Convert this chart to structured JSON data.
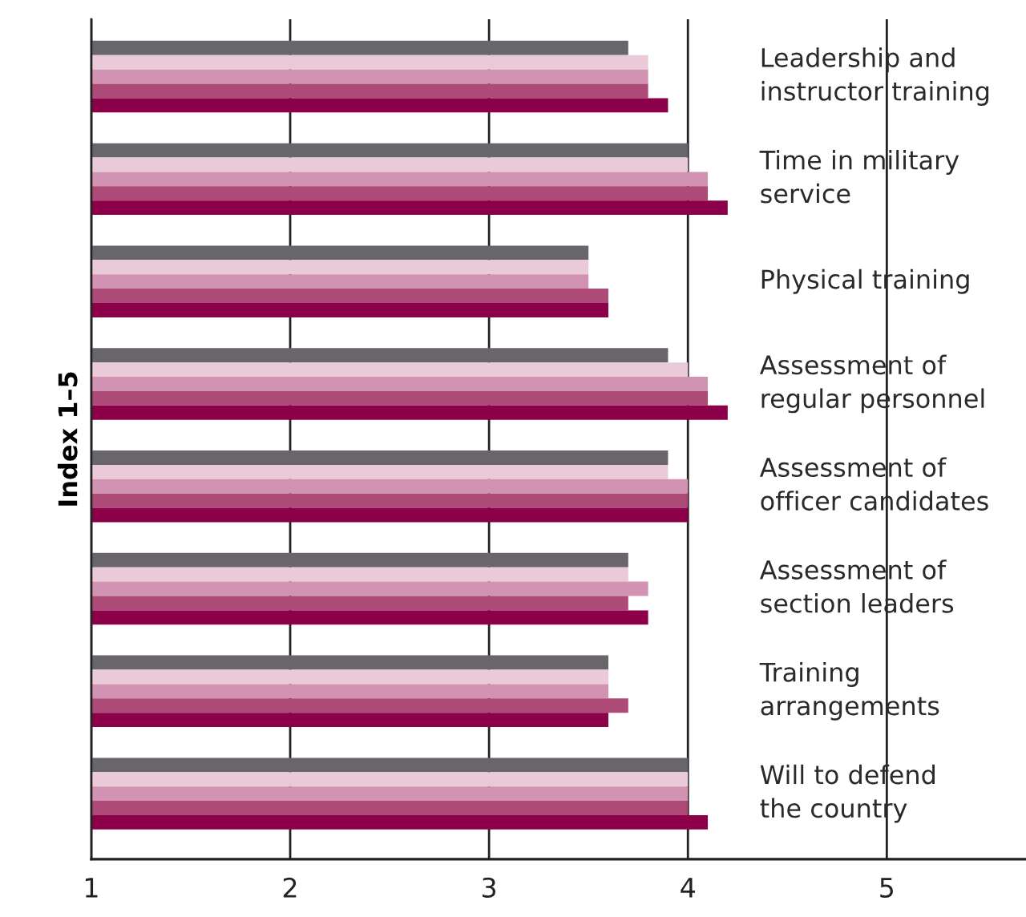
{
  "chart_data": {
    "type": "bar",
    "orientation": "horizontal",
    "ylabel": "Index 1–5",
    "categories": [
      "Leadership and\ninstructor training",
      "Time in military\nservice",
      "Physical training",
      "Assessment of\nregular personnel",
      "Assessment of\nofficer candidates",
      "Assessment of\nsection leaders",
      "Training\narrangements",
      "Will to defend\nthe country"
    ],
    "series": [
      {
        "color": "#68666b",
        "values": [
          3.7,
          4.0,
          3.5,
          3.9,
          3.9,
          3.7,
          3.6,
          4.0
        ]
      },
      {
        "color": "#eac9d9",
        "values": [
          3.8,
          4.0,
          3.5,
          4.0,
          3.9,
          3.7,
          3.6,
          4.0
        ]
      },
      {
        "color": "#d193b1",
        "values": [
          3.8,
          4.1,
          3.5,
          4.1,
          4.0,
          3.8,
          3.6,
          4.0
        ]
      },
      {
        "color": "#ad4a78",
        "values": [
          3.8,
          4.1,
          3.6,
          4.1,
          4.0,
          3.7,
          3.7,
          4.0
        ]
      },
      {
        "color": "#8b0048",
        "values": [
          3.9,
          4.2,
          3.6,
          4.2,
          4.0,
          3.8,
          3.6,
          4.1
        ]
      }
    ],
    "xlim": [
      1,
      5.7
    ],
    "xticks": [
      1,
      2,
      3,
      4,
      5
    ],
    "grid": "x"
  }
}
